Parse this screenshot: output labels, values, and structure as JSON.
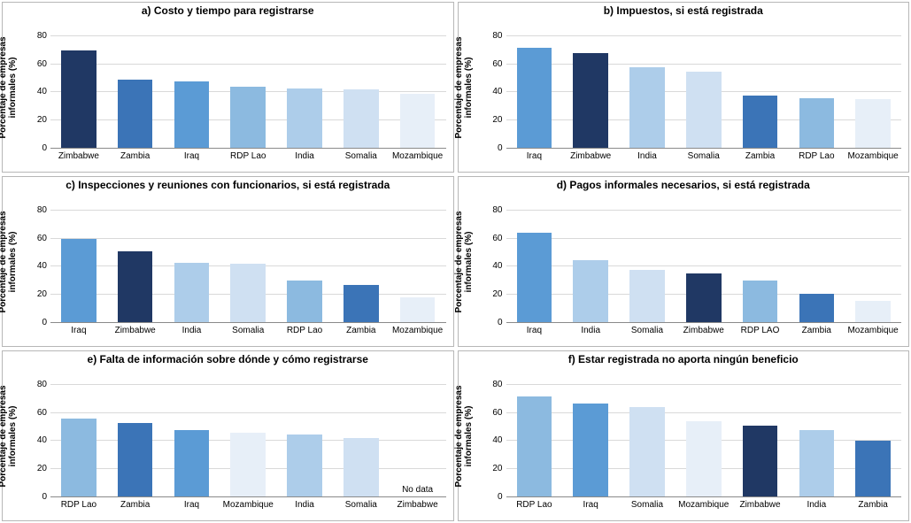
{
  "layout": {
    "grid": [
      3,
      2
    ],
    "border_color": "#b7b7b7",
    "grid_color": "#d9d9d9",
    "baseline_color": "#8a8a8a",
    "background_color": "#ffffff",
    "text_color": "#000000",
    "bar_width_ratio": 0.62,
    "title_fontsize": 12,
    "axis_fontsize": 10,
    "ylabel_fontsize": 10
  },
  "ylabel": "Porcentaje de empresas\ninformales (%)",
  "ylim": [
    0,
    90
  ],
  "yticks": [
    0,
    20,
    40,
    60,
    80
  ],
  "panels": [
    {
      "key": "a",
      "title": "a) Costo y tiempo para registrarse",
      "categories": [
        "Zimbabwe",
        "Zambia",
        "Iraq",
        "RDP Lao",
        "India",
        "Somalia",
        "Mozambique"
      ],
      "values": [
        70,
        49,
        48,
        44,
        43,
        42,
        39
      ],
      "bar_colors": [
        "#203864",
        "#3b74b7",
        "#5b9bd5",
        "#8cbae0",
        "#adcdea",
        "#cfe0f2",
        "#e7eff8"
      ]
    },
    {
      "key": "b",
      "title": "b) Impuestos, si está registrada",
      "categories": [
        "Iraq",
        "Zimbabwe",
        "India",
        "Somalia",
        "Zambia",
        "RDP Lao",
        "Mozambique"
      ],
      "values": [
        72,
        68,
        58,
        55,
        38,
        36,
        35
      ],
      "bar_colors": [
        "#5b9bd5",
        "#203864",
        "#adcdea",
        "#cfe0f2",
        "#3b74b7",
        "#8cbae0",
        "#e7eff8"
      ]
    },
    {
      "key": "c",
      "title": "c) Inspecciones y reuniones con funcionarios, si está registrada",
      "categories": [
        "Iraq",
        "Zimbabwe",
        "India",
        "Somalia",
        "RDP Lao",
        "Zambia",
        "Mozambique"
      ],
      "values": [
        60,
        51,
        43,
        42,
        30,
        27,
        18
      ],
      "bar_colors": [
        "#5b9bd5",
        "#203864",
        "#adcdea",
        "#cfe0f2",
        "#8cbae0",
        "#3b74b7",
        "#e7eff8"
      ]
    },
    {
      "key": "d",
      "title": "d) Pagos informales necesarios, si está registrada",
      "categories": [
        "Iraq",
        "India",
        "Somalia",
        "Zimbabwe",
        "RDP LAO",
        "Zambia",
        "Mozambique"
      ],
      "values": [
        64,
        45,
        38,
        35,
        30,
        21,
        16
      ],
      "bar_colors": [
        "#5b9bd5",
        "#adcdea",
        "#cfe0f2",
        "#203864",
        "#8cbae0",
        "#3b74b7",
        "#e7eff8"
      ]
    },
    {
      "key": "e",
      "title": "e) Falta de información sobre dónde y cómo registrarse",
      "categories": [
        "RDP Lao",
        "Zambia",
        "Iraq",
        "Mozambique",
        "India",
        "Somalia",
        "Zimbabwe"
      ],
      "values": [
        56,
        53,
        48,
        46,
        45,
        42,
        null
      ],
      "no_data_label": "No\ndata",
      "bar_colors": [
        "#8cbae0",
        "#3b74b7",
        "#5b9bd5",
        "#e7eff8",
        "#adcdea",
        "#cfe0f2",
        "#203864"
      ]
    },
    {
      "key": "f",
      "title": "f) Estar registrada no aporta ningún beneficio",
      "categories": [
        "RDP Lao",
        "Iraq",
        "Somalia",
        "Mozambique",
        "Zimbabwe",
        "India",
        "Zambia"
      ],
      "values": [
        72,
        67,
        64,
        54,
        51,
        48,
        40
      ],
      "bar_colors": [
        "#8cbae0",
        "#5b9bd5",
        "#cfe0f2",
        "#e7eff8",
        "#203864",
        "#adcdea",
        "#3b74b7"
      ]
    }
  ]
}
